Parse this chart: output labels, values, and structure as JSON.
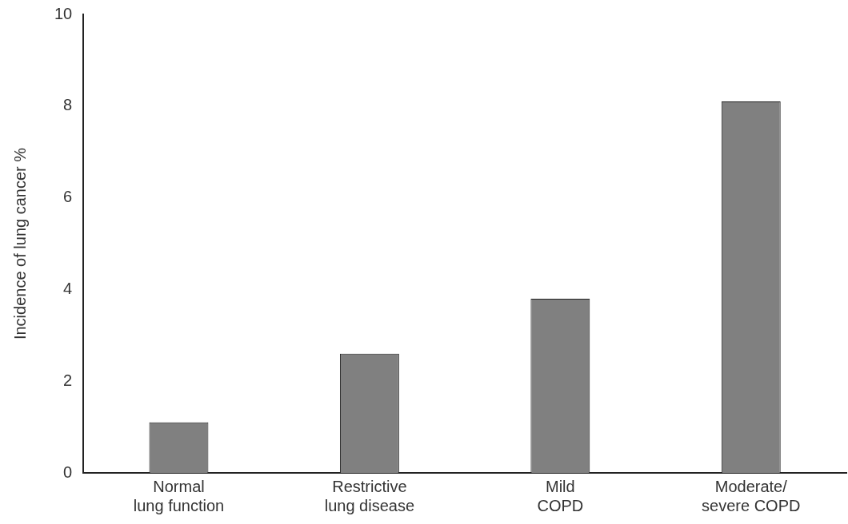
{
  "chart_data": {
    "type": "bar",
    "ylabel": "Incidence of lung cancer %",
    "categories": [
      "Normal lung function",
      "Restrictive lung disease",
      "Mild COPD",
      "Moderate/ severe COPD"
    ],
    "values": [
      1.1,
      2.6,
      3.8,
      8.1
    ],
    "color": "#808080",
    "ylim": [
      0,
      10
    ],
    "yticks": [
      0,
      2,
      4,
      6,
      8,
      10
    ],
    "grid": false,
    "legend": false
  }
}
